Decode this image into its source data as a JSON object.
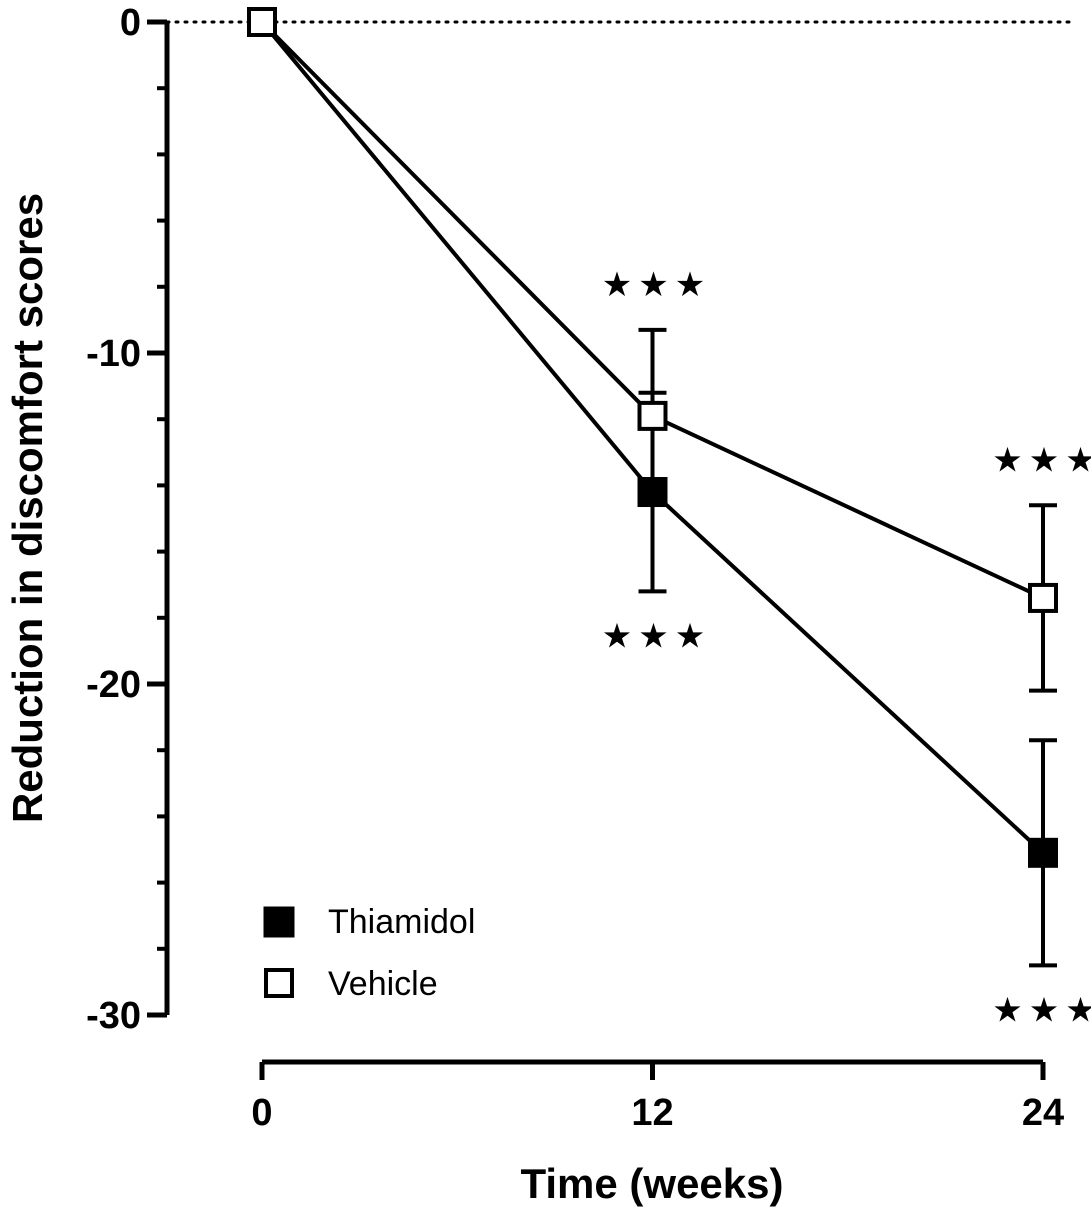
{
  "chart_data": {
    "type": "line",
    "xlabel": "Time (weeks)",
    "ylabel": "Reduction in discomfort scores",
    "x": [
      0,
      12,
      24
    ],
    "x_ticks": [
      "0",
      "12",
      "24"
    ],
    "xlim": [
      0,
      24
    ],
    "y_ticks": [
      "0",
      "-10",
      "-20",
      "-30"
    ],
    "y_tick_values": [
      0,
      -10,
      -20,
      -30
    ],
    "ylim": [
      -30,
      0
    ],
    "reference_line": {
      "y": 0,
      "style": "dotted"
    },
    "grid": false,
    "legend_position": "bottom-left",
    "series": [
      {
        "name": "Thiamidol",
        "marker": "filled-square",
        "color": "#000000",
        "values": [
          0,
          -14.2,
          -25.1
        ],
        "error": [
          0,
          3.0,
          3.4
        ],
        "significance": [
          "",
          "★★★",
          "★★★"
        ],
        "significance_position": "below"
      },
      {
        "name": "Vehicle",
        "marker": "open-square",
        "color": "#000000",
        "values": [
          0,
          -11.9,
          -17.4
        ],
        "error": [
          0,
          2.6,
          2.8
        ],
        "significance": [
          "",
          "★★★",
          "★★★"
        ],
        "significance_position": "above"
      }
    ]
  }
}
